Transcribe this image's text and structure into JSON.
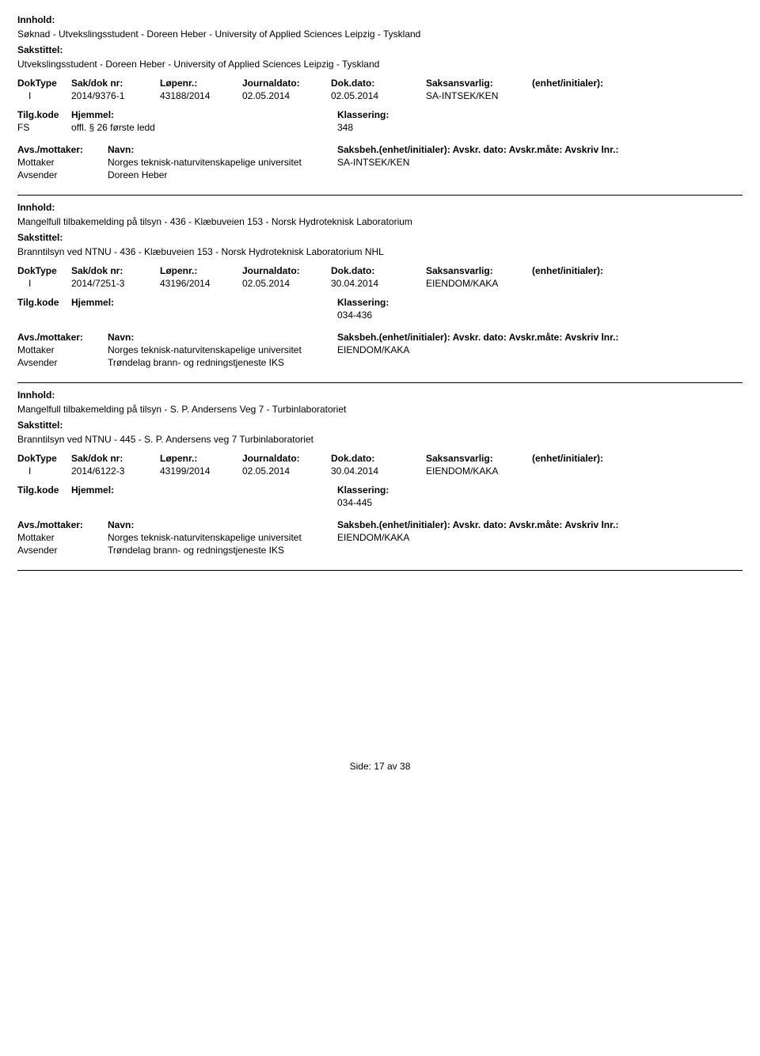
{
  "labels": {
    "innhold": "Innhold:",
    "sakstittel": "Sakstittel:",
    "doktype": "DokType",
    "sakdok": "Sak/dok nr:",
    "lopenr": "Løpenr.:",
    "journaldato": "Journaldato:",
    "dokdato": "Dok.dato:",
    "saksansvarlig": "Saksansvarlig:",
    "enhet": "(enhet/initialer):",
    "tilgkode": "Tilg.kode",
    "hjemmel": "Hjemmel:",
    "klassering": "Klassering:",
    "avsmottaker": "Avs./mottaker:",
    "navn": "Navn:",
    "saksbeh": "Saksbeh.(enhet/initialer): Avskr. dato:  Avskr.måte: Avskriv lnr.:",
    "mottaker": "Mottaker",
    "avsender": "Avsender",
    "side": "Side:",
    "page": "17 av  38"
  },
  "records": [
    {
      "innhold": "Søknad - Utvekslingsstudent - Doreen Heber - University of Applied Sciences Leipzig - Tyskland",
      "sakstittel": "Utvekslingsstudent - Doreen Heber - University of Applied Sciences Leipzig - Tyskland",
      "doktype": "I",
      "sakdok": "2014/9376-1",
      "lopenr": "43188/2014",
      "journaldato": "02.05.2014",
      "dokdato": "02.05.2014",
      "saksansvarlig": "SA-INTSEK/KEN",
      "tilgkode": "FS",
      "hjemmel": "offl. § 26 første ledd",
      "klassering": "348",
      "parties": [
        {
          "role": "Mottaker",
          "name": "Norges teknisk-naturvitenskapelige universitet",
          "saksbeh": "SA-INTSEK/KEN"
        },
        {
          "role": "Avsender",
          "name": "Doreen Heber",
          "saksbeh": ""
        }
      ]
    },
    {
      "innhold": "Mangelfull tilbakemelding på tilsyn - 436 - Klæbuveien 153 - Norsk Hydroteknisk Laboratorium",
      "sakstittel": "Branntilsyn ved NTNU - 436 - Klæbuveien 153 - Norsk Hydroteknisk Laboratorium NHL",
      "doktype": "I",
      "sakdok": "2014/7251-3",
      "lopenr": "43196/2014",
      "journaldato": "02.05.2014",
      "dokdato": "30.04.2014",
      "saksansvarlig": "EIENDOM/KAKA",
      "tilgkode": "",
      "hjemmel": "",
      "klassering": "034-436",
      "parties": [
        {
          "role": "Mottaker",
          "name": "Norges teknisk-naturvitenskapelige universitet",
          "saksbeh": "EIENDOM/KAKA"
        },
        {
          "role": "Avsender",
          "name": "Trøndelag brann- og redningstjeneste IKS",
          "saksbeh": ""
        }
      ]
    },
    {
      "innhold": "Mangelfull tilbakemelding på tilsyn - S. P. Andersens Veg 7 - Turbinlaboratoriet",
      "sakstittel": "Branntilsyn ved NTNU - 445 - S. P. Andersens veg 7 Turbinlaboratoriet",
      "doktype": "I",
      "sakdok": "2014/6122-3",
      "lopenr": "43199/2014",
      "journaldato": "02.05.2014",
      "dokdato": "30.04.2014",
      "saksansvarlig": "EIENDOM/KAKA",
      "tilgkode": "",
      "hjemmel": "",
      "klassering": "034-445",
      "parties": [
        {
          "role": "Mottaker",
          "name": "Norges teknisk-naturvitenskapelige universitet",
          "saksbeh": "EIENDOM/KAKA"
        },
        {
          "role": "Avsender",
          "name": "Trøndelag brann- og redningstjeneste IKS",
          "saksbeh": ""
        }
      ]
    }
  ]
}
